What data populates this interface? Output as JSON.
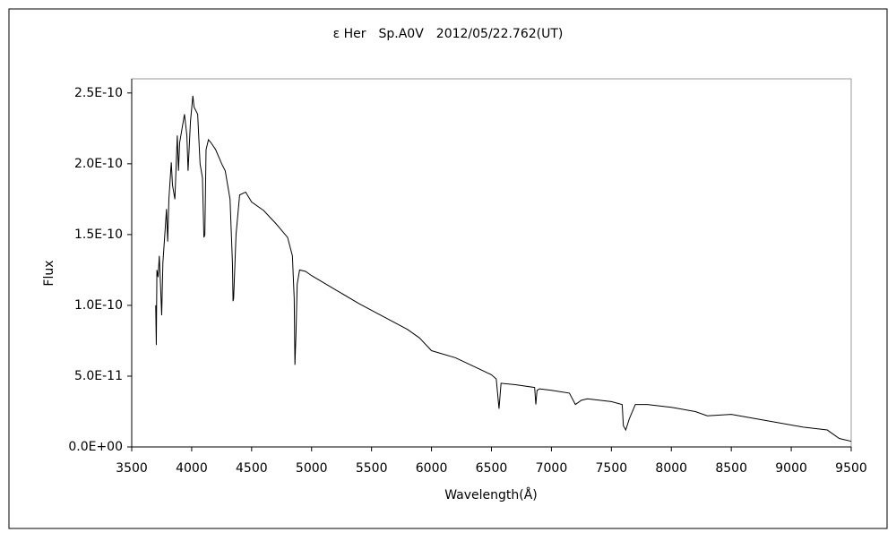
{
  "chart_data": {
    "type": "line",
    "title": "ε Her　Sp.A0V　2012/05/22.762(UT)",
    "x_label": "Wavelength(Å)",
    "y_label": "Flux",
    "color": "#000000",
    "xlim": [
      3500,
      9500
    ],
    "xticks": [
      3500,
      4000,
      4500,
      5000,
      5500,
      6000,
      6500,
      7000,
      7500,
      8000,
      8500,
      9000,
      9500
    ],
    "ylim": [
      0,
      2.6e-10
    ],
    "yticks": [
      {
        "value": 0,
        "label": "0.0E+00"
      },
      {
        "value": 5e-11,
        "label": "5.0E-11"
      },
      {
        "value": 1e-10,
        "label": "1.0E-10"
      },
      {
        "value": 1.5e-10,
        "label": "1.5E-10"
      },
      {
        "value": 2e-10,
        "label": "2.0E-10"
      },
      {
        "value": 2.5e-10,
        "label": "2.5E-10"
      }
    ],
    "grid": false,
    "x": [
      3700,
      3705,
      3710,
      3720,
      3730,
      3740,
      3750,
      3760,
      3780,
      3790,
      3800,
      3810,
      3830,
      3840,
      3860,
      3880,
      3890,
      3900,
      3920,
      3940,
      3960,
      3970,
      3990,
      4010,
      4020,
      4050,
      4070,
      4090,
      4102,
      4110,
      4120,
      4140,
      4160,
      4200,
      4250,
      4280,
      4320,
      4340,
      4345,
      4350,
      4370,
      4400,
      4450,
      4500,
      4600,
      4700,
      4800,
      4840,
      4855,
      4861,
      4870,
      4880,
      4900,
      4950,
      5000,
      5200,
      5400,
      5600,
      5800,
      5900,
      6000,
      6200,
      6400,
      6500,
      6540,
      6563,
      6580,
      6700,
      6860,
      6870,
      6880,
      6900,
      7000,
      7150,
      7200,
      7250,
      7300,
      7500,
      7590,
      7600,
      7620,
      7650,
      7700,
      7800,
      8000,
      8200,
      8300,
      8500,
      8700,
      8900,
      9100,
      9300,
      9400,
      9500
    ],
    "values": [
      1e-10,
      7.2e-11,
      1.25e-10,
      1.2e-10,
      1.35e-10,
      1.15e-10,
      9.3e-11,
      1.3e-10,
      1.55e-10,
      1.68e-10,
      1.45e-10,
      1.75e-10,
      2.01e-10,
      1.85e-10,
      1.75e-10,
      2.2e-10,
      1.95e-10,
      2.15e-10,
      2.25e-10,
      2.35e-10,
      2.2e-10,
      1.95e-10,
      2.3e-10,
      2.48e-10,
      2.4e-10,
      2.35e-10,
      2e-10,
      1.9e-10,
      1.48e-10,
      1.5e-10,
      2.1e-10,
      2.17e-10,
      2.15e-10,
      2.1e-10,
      2e-10,
      1.95e-10,
      1.75e-10,
      1.3e-10,
      1.03e-10,
      1.05e-10,
      1.5e-10,
      1.78e-10,
      1.8e-10,
      1.73e-10,
      1.67e-10,
      1.58e-10,
      1.48e-10,
      1.35e-10,
      1.05e-10,
      5.8e-11,
      8e-11,
      1.15e-10,
      1.25e-10,
      1.24e-10,
      1.21e-10,
      1.11e-10,
      1.01e-10,
      9.2e-11,
      8.3e-11,
      7.7e-11,
      6.8e-11,
      6.3e-11,
      5.5e-11,
      5.1e-11,
      4.8e-11,
      2.7e-11,
      4.5e-11,
      4.4e-11,
      4.2e-11,
      3e-11,
      4e-11,
      4.1e-11,
      4e-11,
      3.8e-11,
      3e-11,
      3.3e-11,
      3.4e-11,
      3.2e-11,
      3e-11,
      1.5e-11,
      1.2e-11,
      2e-11,
      3e-11,
      3e-11,
      2.8e-11,
      2.5e-11,
      2.2e-11,
      2.3e-11,
      2e-11,
      1.7e-11,
      1.4e-11,
      1.2e-11,
      6e-12,
      4e-12
    ]
  }
}
